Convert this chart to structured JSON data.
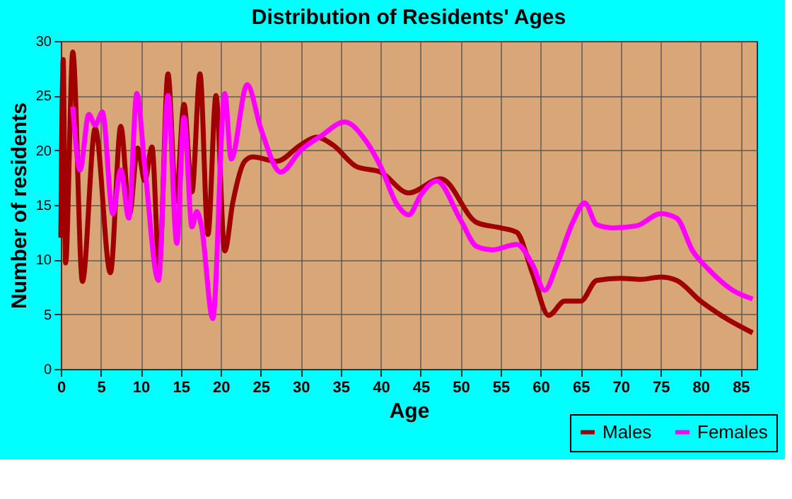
{
  "chart_data": {
    "type": "line",
    "title": "Distribution of Residents' Ages",
    "xlabel": "Age",
    "ylabel": "Number of residents",
    "xlim": [
      0,
      87
    ],
    "ylim": [
      0,
      30
    ],
    "xticks": [
      0,
      5,
      10,
      15,
      20,
      25,
      30,
      35,
      40,
      45,
      50,
      55,
      60,
      65,
      70,
      75,
      80,
      85
    ],
    "yticks": [
      0,
      5,
      10,
      15,
      20,
      25,
      30
    ],
    "grid": true,
    "legend": "bottom right",
    "marker": "none",
    "line_style": "solid",
    "series": [
      {
        "name": "Males",
        "color": "#a00000",
        "x": [
          0,
          0.3,
          0.6,
          1.5,
          2.7,
          4.3,
          6.2,
          7.5,
          8.6,
          9.6,
          10.5,
          11.4,
          12.3,
          13.4,
          14.4,
          15.4,
          16.4,
          17.4,
          18.4,
          19.4,
          20.5,
          21.5,
          23,
          24,
          27,
          30,
          32,
          34,
          37,
          40,
          43.5,
          47.5,
          52,
          55,
          57,
          59,
          61,
          63,
          65,
          67,
          70,
          72.5,
          75,
          77,
          80,
          83,
          86.5
        ],
        "values": [
          12,
          28.3,
          9.7,
          29,
          8,
          22,
          8.8,
          22.2,
          14.2,
          20.2,
          17.2,
          20.3,
          9.2,
          27,
          15.3,
          24.2,
          16.2,
          27,
          12.3,
          25,
          10.8,
          15.2,
          19,
          19.4,
          19,
          20.5,
          21.2,
          20.5,
          18.5,
          18,
          16.1,
          17.4,
          13.4,
          12.9,
          12.5,
          8.7,
          4.9,
          6.2,
          6.2,
          8.1,
          8.3,
          8.2,
          8.4,
          8.1,
          6.2,
          4.7,
          3.3
        ]
      },
      {
        "name": "Females",
        "color": "#ff00ff",
        "x": [
          1.5,
          2.4,
          3.5,
          4.3,
          5.2,
          6.5,
          7.5,
          8.5,
          9.5,
          10.5,
          12.2,
          13.4,
          14.5,
          15.4,
          16.4,
          17,
          17.6,
          19,
          20.5,
          21.3,
          23.3,
          25,
          27.5,
          30,
          32.5,
          35.5,
          38,
          40,
          42,
          43.5,
          45,
          47,
          50,
          52,
          54,
          57,
          59,
          60.5,
          62,
          64,
          65.5,
          67,
          69,
          72,
          75,
          77,
          79,
          81,
          84,
          86.5
        ],
        "values": [
          24,
          18.2,
          23.3,
          22.3,
          23.5,
          14.2,
          18.2,
          13.8,
          25.2,
          18.5,
          8.1,
          25,
          11.5,
          23,
          13,
          14.4,
          13,
          4.6,
          25.2,
          19.2,
          26,
          22,
          18,
          20,
          21.3,
          22.6,
          21,
          18.5,
          15.1,
          14.1,
          15.9,
          17.2,
          13.6,
          11.2,
          10.9,
          11.4,
          9.5,
          7.2,
          9.5,
          13.4,
          15.2,
          13.2,
          12.9,
          13.1,
          14.2,
          13.8,
          10.8,
          9.1,
          7.2,
          6.4
        ]
      }
    ]
  }
}
